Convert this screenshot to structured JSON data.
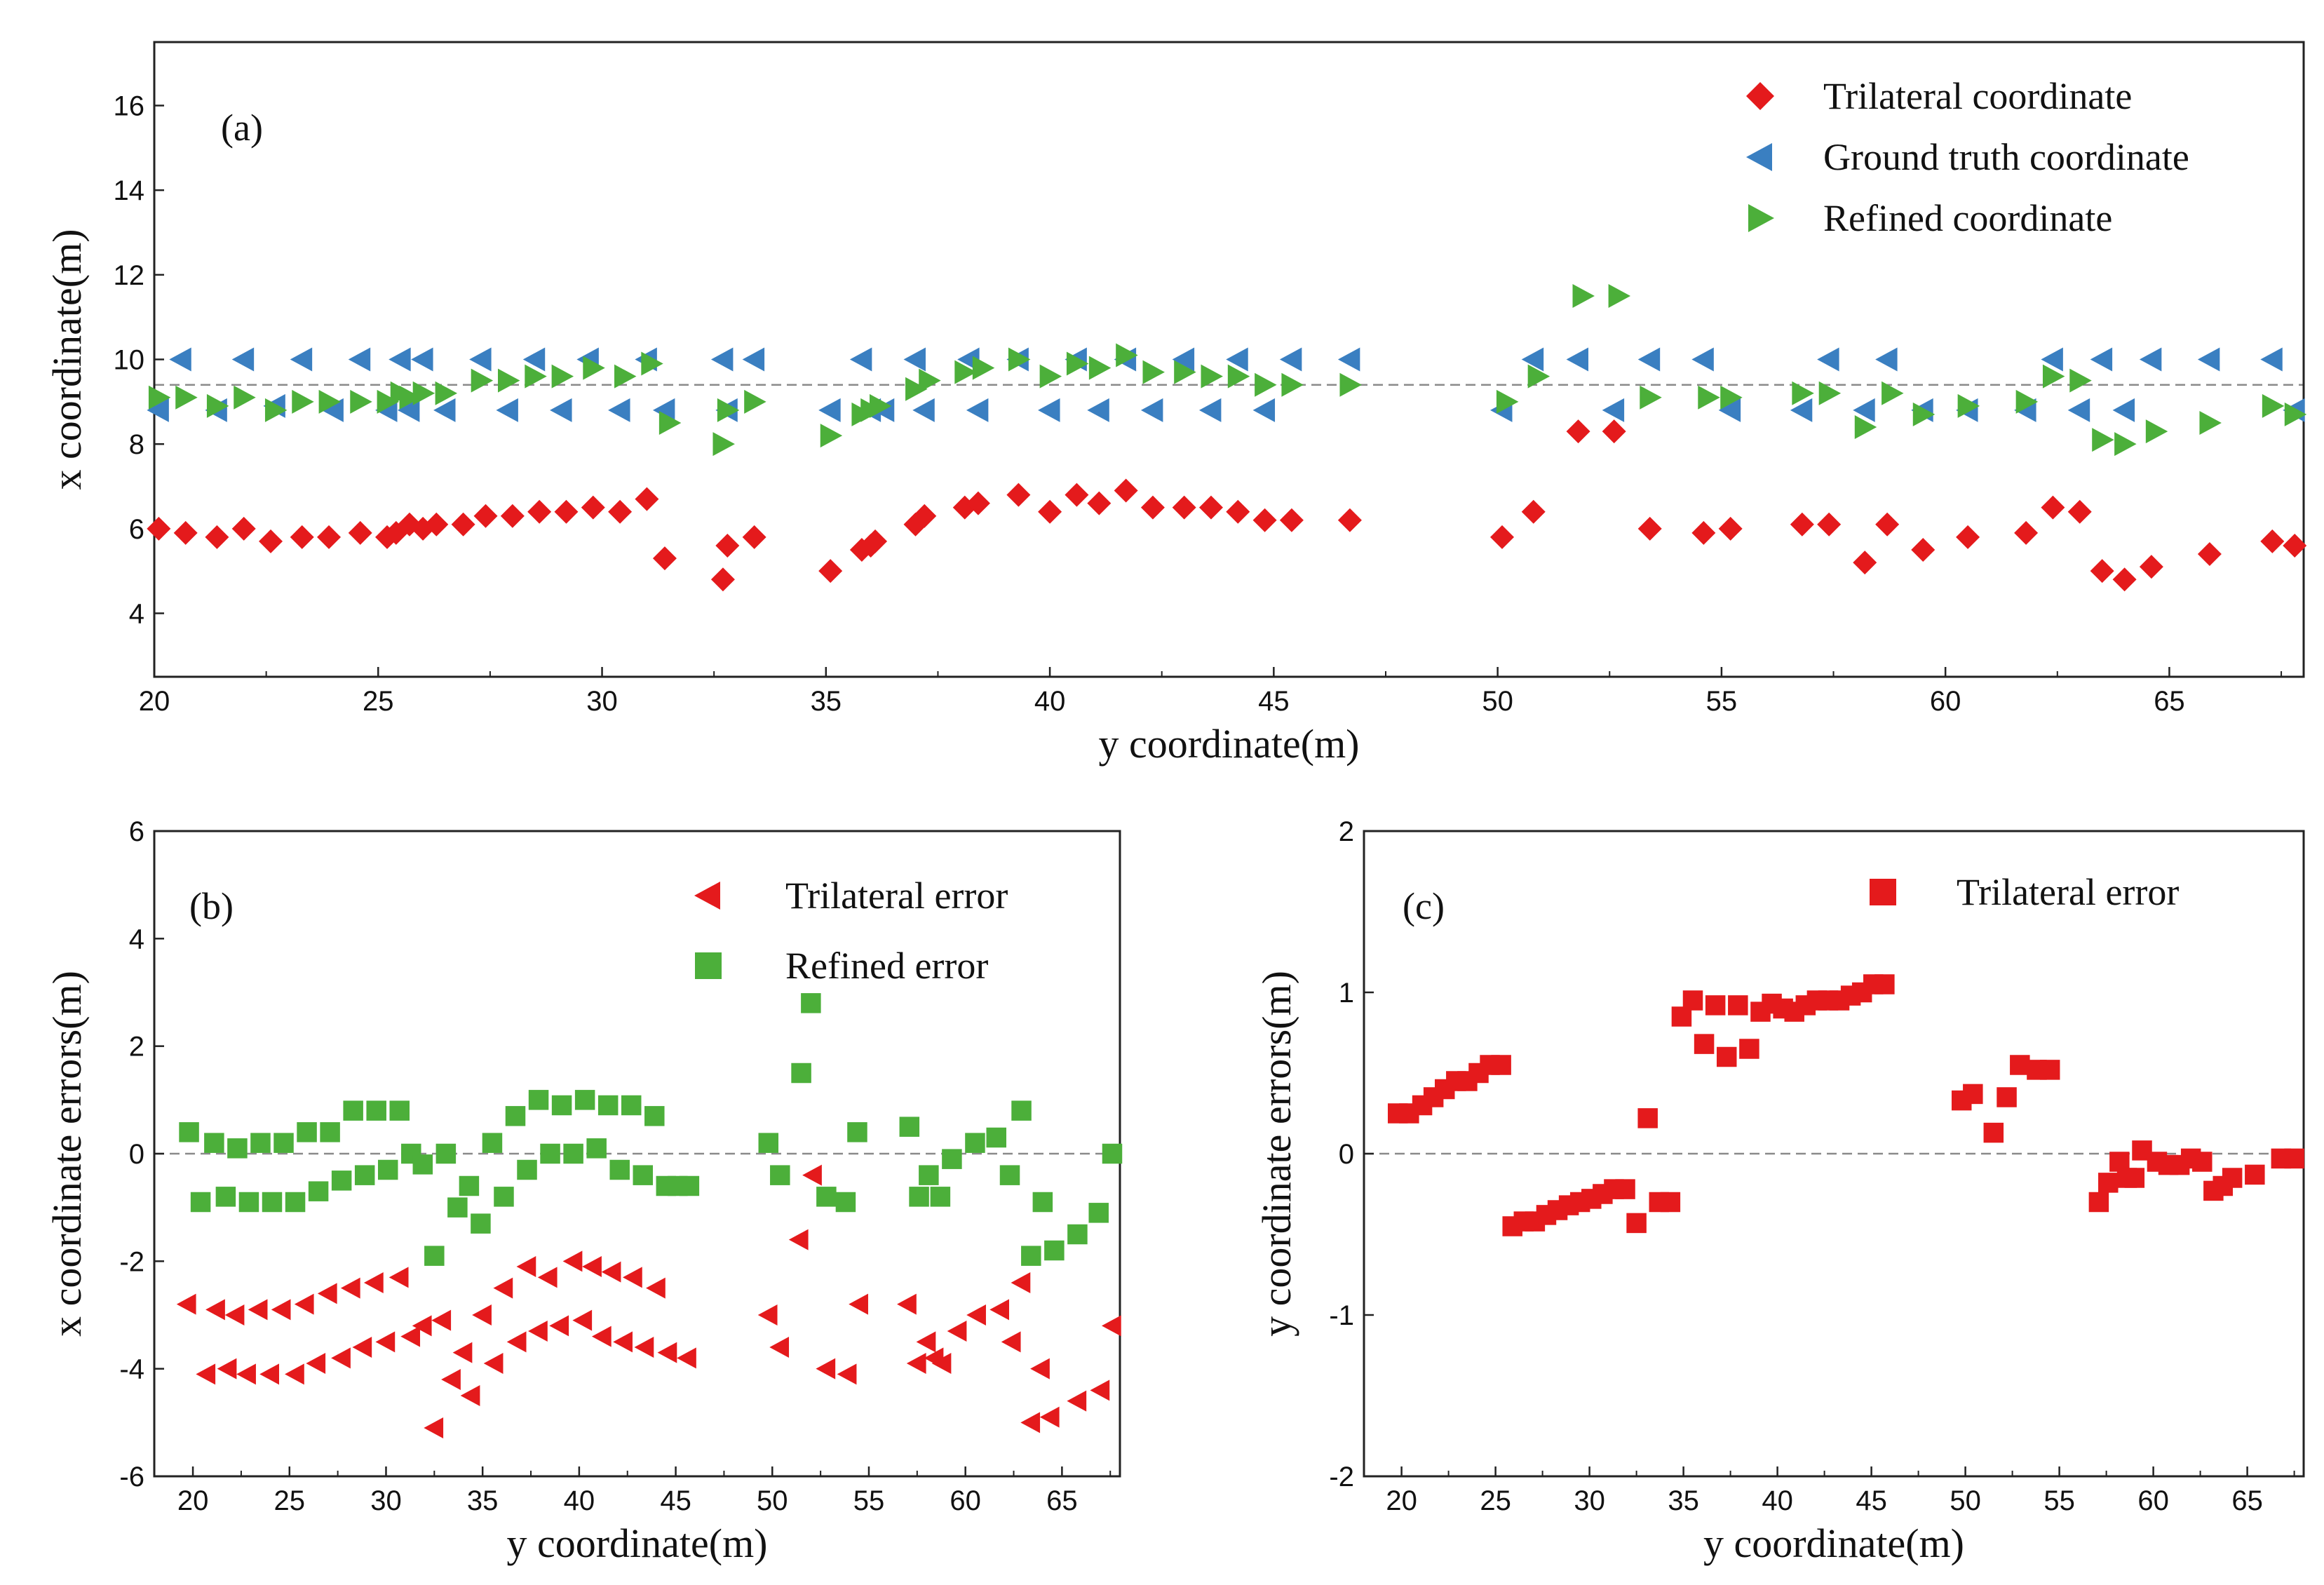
{
  "figure": {
    "panels": [
      "a",
      "b",
      "c"
    ]
  },
  "chart_data": [
    {
      "id": "a",
      "type": "scatter",
      "panel_label": "(a)",
      "xlabel": "y coordinate(m)",
      "ylabel": "x coordinate(m)",
      "xlim": [
        20,
        68
      ],
      "ylim": [
        2.5,
        17.5
      ],
      "xticks": [
        20,
        25,
        30,
        35,
        40,
        45,
        50,
        55,
        60,
        65
      ],
      "yticks": [
        4,
        6,
        8,
        10,
        12,
        14,
        16
      ],
      "reference_line": 9.4,
      "legend_position": "top-right",
      "series": [
        {
          "name": "Trilateral  coordinate",
          "marker": "diamond",
          "color": "#e41a1c",
          "x": [
            20.1,
            20.7,
            21.4,
            22.0,
            22.6,
            23.3,
            23.9,
            24.6,
            25.2,
            25.4,
            25.7,
            26.0,
            26.3,
            26.9,
            27.4,
            28.0,
            28.6,
            29.2,
            29.8,
            30.4,
            31.0,
            31.4,
            32.7,
            32.8,
            33.4,
            35.1,
            35.8,
            36.0,
            36.1,
            37.0,
            37.2,
            38.1,
            38.4,
            39.3,
            40.0,
            40.6,
            41.1,
            41.7,
            42.3,
            43.0,
            43.6,
            44.2,
            44.8,
            45.4,
            46.7,
            50.1,
            50.8,
            51.8,
            52.6,
            53.4,
            54.6,
            55.2,
            56.8,
            57.4,
            58.2,
            58.7,
            59.5,
            60.5,
            61.8,
            62.4,
            63.0,
            63.5,
            64.0,
            64.6,
            65.9,
            67.3,
            67.8
          ],
          "y": [
            6.0,
            5.9,
            5.8,
            6.0,
            5.7,
            5.8,
            5.8,
            5.9,
            5.8,
            5.9,
            6.1,
            6.0,
            6.1,
            6.1,
            6.3,
            6.3,
            6.4,
            6.4,
            6.5,
            6.4,
            6.7,
            5.3,
            4.8,
            5.6,
            5.8,
            5.0,
            5.5,
            5.6,
            5.7,
            6.1,
            6.3,
            6.5,
            6.6,
            6.8,
            6.4,
            6.8,
            6.6,
            6.9,
            6.5,
            6.5,
            6.5,
            6.4,
            6.2,
            6.2,
            6.2,
            5.8,
            6.4,
            8.3,
            8.3,
            6.0,
            5.9,
            6.0,
            6.1,
            6.1,
            5.2,
            6.1,
            5.5,
            5.8,
            5.9,
            6.5,
            6.4,
            5.0,
            4.8,
            5.1,
            5.4,
            5.7,
            5.6
          ]
        },
        {
          "name": "Ground truth coordinate",
          "marker": "triangle-left",
          "color": "#3a7fc1",
          "x": [
            20.1,
            20.6,
            21.4,
            22.0,
            22.7,
            23.3,
            24.0,
            24.6,
            25.2,
            25.5,
            25.7,
            26.0,
            26.5,
            27.3,
            27.9,
            28.5,
            29.1,
            29.7,
            30.4,
            31.0,
            31.4,
            32.7,
            32.8,
            33.4,
            35.1,
            35.8,
            36.0,
            36.3,
            37.0,
            37.2,
            38.2,
            38.4,
            39.3,
            40.0,
            40.6,
            41.1,
            41.7,
            42.3,
            43.0,
            43.6,
            44.2,
            44.8,
            45.4,
            46.7,
            50.1,
            50.8,
            51.8,
            52.6,
            53.4,
            54.6,
            55.2,
            56.8,
            57.4,
            58.2,
            58.7,
            59.5,
            60.5,
            61.8,
            62.4,
            63.0,
            63.5,
            64.0,
            64.6,
            65.9,
            67.3,
            67.8
          ],
          "y": [
            8.8,
            10.0,
            8.8,
            10.0,
            8.9,
            10.0,
            8.8,
            10.0,
            8.8,
            10.0,
            8.8,
            10.0,
            8.8,
            10.0,
            8.8,
            10.0,
            8.8,
            10.0,
            8.8,
            10.0,
            8.8,
            10.0,
            8.8,
            10.0,
            8.8,
            10.0,
            8.8,
            8.8,
            10.0,
            8.8,
            10.0,
            8.8,
            10.0,
            8.8,
            10.0,
            8.8,
            10.0,
            8.8,
            10.0,
            8.8,
            10.0,
            8.8,
            10.0,
            10.0,
            8.8,
            10.0,
            10.0,
            8.8,
            10.0,
            10.0,
            8.8,
            8.8,
            10.0,
            8.8,
            10.0,
            8.8,
            8.8,
            8.8,
            10.0,
            8.8,
            10.0,
            8.8,
            10.0,
            10.0,
            10.0,
            8.8
          ]
        },
        {
          "name": "Refined coordinate",
          "marker": "triangle-right",
          "color": "#4caf3a",
          "x": [
            20.1,
            20.7,
            21.4,
            22.0,
            22.7,
            23.3,
            23.9,
            24.6,
            25.2,
            25.5,
            25.7,
            26.0,
            26.5,
            27.3,
            27.9,
            28.5,
            29.1,
            29.8,
            30.5,
            31.1,
            31.5,
            32.7,
            32.8,
            33.4,
            35.1,
            35.8,
            36.0,
            36.2,
            37.0,
            37.3,
            38.1,
            38.5,
            39.3,
            40.0,
            40.6,
            41.1,
            41.7,
            42.3,
            43.0,
            43.6,
            44.2,
            44.8,
            45.4,
            46.7,
            50.2,
            50.9,
            51.9,
            52.7,
            53.4,
            54.7,
            55.2,
            56.8,
            57.4,
            58.2,
            58.8,
            59.5,
            60.5,
            61.8,
            62.4,
            63.0,
            63.5,
            64.0,
            64.7,
            65.9,
            67.3,
            67.8
          ],
          "y": [
            9.1,
            9.1,
            8.9,
            9.1,
            8.8,
            9.0,
            9.0,
            9.0,
            9.0,
            9.2,
            9.1,
            9.2,
            9.2,
            9.5,
            9.5,
            9.6,
            9.6,
            9.8,
            9.6,
            9.9,
            8.5,
            8.0,
            8.8,
            9.0,
            8.2,
            8.7,
            8.8,
            8.9,
            9.3,
            9.5,
            9.7,
            9.8,
            10.0,
            9.6,
            9.9,
            9.8,
            10.1,
            9.7,
            9.7,
            9.6,
            9.6,
            9.4,
            9.4,
            9.4,
            9.0,
            9.6,
            11.5,
            11.5,
            9.1,
            9.1,
            9.1,
            9.2,
            9.2,
            8.4,
            9.2,
            8.7,
            8.9,
            9.0,
            9.6,
            9.5,
            8.1,
            8.0,
            8.3,
            8.5,
            8.9,
            8.7
          ]
        }
      ]
    },
    {
      "id": "b",
      "type": "scatter",
      "panel_label": "(b)",
      "xlabel": "y coordinate(m)",
      "ylabel": "x coordinate errors(m)",
      "xlim": [
        18,
        68
      ],
      "ylim": [
        -6,
        6
      ],
      "xticks": [
        20,
        25,
        30,
        35,
        40,
        45,
        50,
        55,
        60,
        65
      ],
      "yticks": [
        -6,
        -4,
        -2,
        0,
        2,
        4,
        6
      ],
      "reference_line": 0,
      "legend_position": "top-right",
      "series": [
        {
          "name": "Trilateral error",
          "marker": "triangle-left",
          "color": "#e41a1c",
          "x": [
            19.7,
            20.7,
            21.2,
            21.8,
            22.2,
            22.8,
            23.4,
            24.0,
            24.6,
            25.3,
            25.8,
            26.4,
            27.0,
            27.7,
            28.2,
            28.8,
            29.4,
            30.0,
            30.7,
            31.3,
            31.9,
            32.5,
            32.9,
            33.4,
            34.0,
            34.4,
            35.0,
            35.6,
            36.1,
            36.8,
            37.3,
            37.9,
            38.4,
            39.0,
            39.7,
            40.2,
            40.7,
            41.2,
            41.7,
            42.3,
            42.8,
            43.4,
            44.0,
            44.6,
            45.6,
            49.8,
            50.4,
            51.4,
            52.1,
            52.8,
            53.9,
            54.5,
            57.0,
            57.5,
            58.0,
            58.4,
            58.8,
            59.6,
            60.6,
            61.8,
            62.4,
            62.9,
            63.4,
            63.9,
            64.4,
            65.8,
            67.0,
            67.6
          ],
          "y": [
            -2.8,
            -4.1,
            -2.9,
            -4.0,
            -3.0,
            -4.1,
            -2.9,
            -4.1,
            -2.9,
            -4.1,
            -2.8,
            -3.9,
            -2.6,
            -3.8,
            -2.5,
            -3.6,
            -2.4,
            -3.5,
            -2.3,
            -3.4,
            -3.2,
            -5.1,
            -3.1,
            -4.2,
            -3.7,
            -4.5,
            -3.0,
            -3.9,
            -2.5,
            -3.5,
            -2.1,
            -3.3,
            -2.3,
            -3.2,
            -2.0,
            -3.1,
            -2.1,
            -3.4,
            -2.2,
            -3.5,
            -2.3,
            -3.6,
            -2.5,
            -3.7,
            -3.8,
            -3.0,
            -3.6,
            -1.6,
            -0.4,
            -4.0,
            -4.1,
            -2.8,
            -2.8,
            -3.9,
            -3.5,
            -3.8,
            -3.9,
            -3.3,
            -3.0,
            -2.9,
            -3.5,
            -2.4,
            -5.0,
            -4.0,
            -4.9,
            -4.6,
            -4.4,
            -3.2
          ]
        },
        {
          "name": "Refined error",
          "marker": "square",
          "color": "#4caf3a",
          "x": [
            19.8,
            20.4,
            21.1,
            21.7,
            22.3,
            22.9,
            23.5,
            24.1,
            24.7,
            25.3,
            25.9,
            26.5,
            27.1,
            27.7,
            28.3,
            28.9,
            29.5,
            30.1,
            30.7,
            31.3,
            31.9,
            32.5,
            33.1,
            33.7,
            34.3,
            34.9,
            35.5,
            36.1,
            36.7,
            37.3,
            37.9,
            38.5,
            39.1,
            39.7,
            40.3,
            40.9,
            41.5,
            42.1,
            42.7,
            43.3,
            43.9,
            44.5,
            45.1,
            45.7,
            49.8,
            50.4,
            51.5,
            52.0,
            52.8,
            53.8,
            54.4,
            57.1,
            57.6,
            58.1,
            58.7,
            59.3,
            60.5,
            61.6,
            62.3,
            62.9,
            63.4,
            64.0,
            64.6,
            65.8,
            66.9,
            67.6
          ],
          "y": [
            0.4,
            -0.9,
            0.2,
            -0.8,
            0.1,
            -0.9,
            0.2,
            -0.9,
            0.2,
            -0.9,
            0.4,
            -0.7,
            0.4,
            -0.5,
            0.8,
            -0.4,
            0.8,
            -0.3,
            0.8,
            0.0,
            -0.2,
            -1.9,
            0.0,
            -1.0,
            -0.6,
            -1.3,
            0.2,
            -0.8,
            0.7,
            -0.3,
            1.0,
            0.0,
            0.9,
            0.0,
            1.0,
            0.1,
            0.9,
            -0.3,
            0.9,
            -0.4,
            0.7,
            -0.6,
            -0.6,
            -0.6,
            0.2,
            -0.4,
            1.5,
            2.8,
            -0.8,
            -0.9,
            0.4,
            0.5,
            -0.8,
            -0.4,
            -0.8,
            -0.1,
            0.2,
            0.3,
            -0.4,
            0.8,
            -1.9,
            -0.9,
            -1.8,
            -1.5,
            -1.1,
            0.0
          ]
        }
      ]
    },
    {
      "id": "c",
      "type": "scatter",
      "panel_label": "(c)",
      "xlabel": "y coordinate(m)",
      "ylabel": "y coordinate errors(m)",
      "xlim": [
        18,
        68
      ],
      "ylim": [
        -2,
        2
      ],
      "xticks": [
        20,
        25,
        30,
        35,
        40,
        45,
        50,
        55,
        60,
        65
      ],
      "yticks": [
        -2,
        -1,
        0,
        1,
        2
      ],
      "reference_line": 0,
      "legend_position": "top-right",
      "series": [
        {
          "name": "Trilateral error",
          "marker": "square",
          "color": "#e41a1c",
          "x": [
            19.8,
            20.4,
            21.1,
            21.7,
            22.3,
            22.9,
            23.5,
            24.1,
            24.7,
            25.3,
            25.9,
            26.5,
            27.1,
            27.7,
            28.3,
            28.9,
            29.5,
            30.1,
            30.7,
            31.3,
            31.9,
            32.5,
            33.1,
            33.7,
            34.3,
            34.9,
            35.5,
            36.1,
            36.7,
            37.3,
            37.9,
            38.5,
            39.1,
            39.7,
            40.3,
            40.9,
            41.5,
            42.1,
            42.7,
            43.3,
            43.9,
            44.5,
            45.1,
            45.7,
            49.8,
            50.4,
            51.5,
            52.2,
            52.9,
            53.8,
            54.5,
            57.1,
            57.6,
            58.2,
            58.6,
            59.0,
            59.4,
            60.2,
            60.8,
            61.4,
            62.0,
            62.6,
            63.2,
            63.7,
            64.2,
            65.4,
            66.8,
            67.5
          ],
          "y": [
            0.25,
            0.25,
            0.3,
            0.35,
            0.4,
            0.45,
            0.45,
            0.5,
            0.55,
            0.55,
            -0.45,
            -0.42,
            -0.42,
            -0.38,
            -0.35,
            -0.32,
            -0.3,
            -0.28,
            -0.25,
            -0.22,
            -0.22,
            -0.43,
            0.22,
            -0.3,
            -0.3,
            0.85,
            0.95,
            0.68,
            0.92,
            0.6,
            0.92,
            0.65,
            0.88,
            0.93,
            0.9,
            0.88,
            0.92,
            0.95,
            0.95,
            0.95,
            0.98,
            1.0,
            1.05,
            1.05,
            0.33,
            0.37,
            0.13,
            0.35,
            0.55,
            0.52,
            0.52,
            -0.3,
            -0.18,
            -0.05,
            -0.15,
            -0.15,
            0.02,
            -0.05,
            -0.07,
            -0.07,
            -0.03,
            -0.05,
            -0.23,
            -0.2,
            -0.15,
            -0.13,
            -0.03,
            -0.03
          ]
        }
      ]
    }
  ]
}
